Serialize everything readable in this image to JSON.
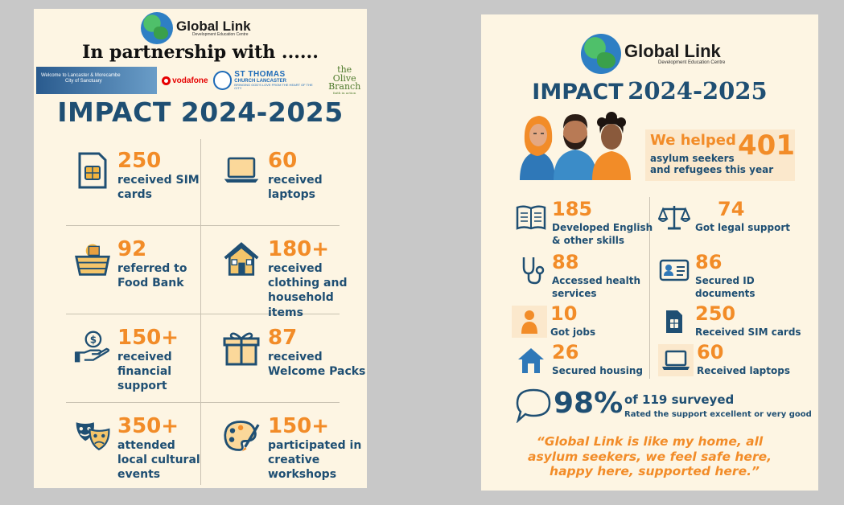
{
  "left_poster": {
    "logo": {
      "name": "Global Link",
      "subtitle": "Development Education Centre"
    },
    "partnership_heading": "In partnership with ......",
    "partners": {
      "lancaster_line1": "Welcome to Lancaster & Morecambe",
      "lancaster_line2": "City of Sanctuary",
      "vodafone": "vodafone",
      "st_thomas": "ST THOMAS",
      "st_thomas_sub": "CHURCH LANCASTER",
      "st_thomas_tag": "BRINGING GOD'S LOVE FROM THE HEART OF THE CITY",
      "olive_line1": "the Olive",
      "olive_line2": "Branch",
      "olive_tag": "faith in action"
    },
    "title": "IMPACT 2024-2025",
    "stats": [
      {
        "value": "250",
        "label": "received SIM cards",
        "icon": "sim-card-icon"
      },
      {
        "value": "60",
        "label": "received laptops",
        "icon": "laptop-icon"
      },
      {
        "value": "92",
        "label": "referred to Food Bank",
        "icon": "food-basket-icon"
      },
      {
        "value": "180+",
        "label": "received clothing and household items",
        "icon": "house-icon"
      },
      {
        "value": "150+",
        "label": "received financial support",
        "icon": "hand-coin-icon"
      },
      {
        "value": "87",
        "label": "received Welcome Packs",
        "icon": "gift-icon"
      },
      {
        "value": "350+",
        "label": "attended local cultural events",
        "icon": "theatre-masks-icon"
      },
      {
        "value": "150+",
        "label": "participated in creative workshops",
        "icon": "palette-icon"
      }
    ]
  },
  "right_poster": {
    "logo": {
      "name": "Global Link",
      "subtitle": "Development Education Centre"
    },
    "title_word1": "IMPACT",
    "title_word2": "2024-2025",
    "helped": {
      "lead": "We helped",
      "number": "401",
      "line2": "asylum seekers",
      "line3": "and refugees this year"
    },
    "stats": [
      {
        "value": "185",
        "label": "Developed English & other skills",
        "icon": "book-icon"
      },
      {
        "value": "74",
        "label": "Got legal support",
        "icon": "scales-icon"
      },
      {
        "value": "88",
        "label": "Accessed health services",
        "icon": "stethoscope-icon"
      },
      {
        "value": "86",
        "label": "Secured ID documents",
        "icon": "id-card-icon"
      },
      {
        "value": "10",
        "label": "Got jobs",
        "icon": "worker-icon"
      },
      {
        "value": "250",
        "label": "Received SIM cards",
        "icon": "sim-card-icon"
      },
      {
        "value": "26",
        "label": "Secured housing",
        "icon": "house-icon"
      },
      {
        "value": "60",
        "label": "Received laptops",
        "icon": "laptop-icon"
      }
    ],
    "survey": {
      "percent": "98%",
      "of": "of 119 surveyed",
      "rated": "Rated the support excellent or very good"
    },
    "quote": [
      "“Global Link is like my home, all",
      "asylum seekers, we feel safe here,",
      "happy here, supported here.”"
    ],
    "colors": {
      "navy": "#1f4f73",
      "orange": "#f28c28",
      "cream": "#fdf5e3"
    }
  }
}
